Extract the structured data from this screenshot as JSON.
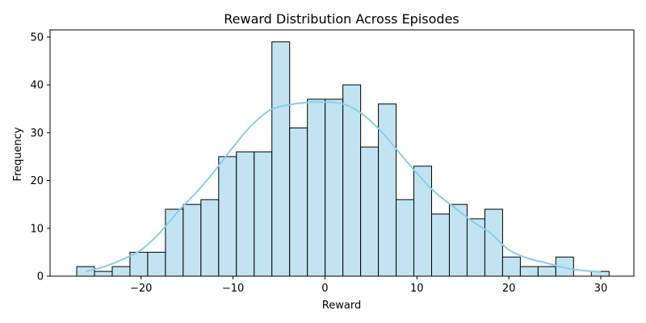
{
  "chart_data": {
    "type": "histogram",
    "title": "Reward Distribution Across Episodes",
    "xlabel": "Reward",
    "ylabel": "Frequency",
    "xlim": [
      -29.9,
      33.6
    ],
    "ylim": [
      0,
      51.5
    ],
    "xticks": [
      -20,
      -10,
      0,
      10,
      20,
      30
    ],
    "xtick_labels": [
      "−20",
      "−10",
      "0",
      "10",
      "20",
      "30"
    ],
    "yticks": [
      0,
      10,
      20,
      30,
      40,
      50
    ],
    "ytick_labels": [
      "0",
      "10",
      "20",
      "30",
      "40",
      "50"
    ],
    "bins": {
      "start": -27.0,
      "width": 1.93,
      "count": 30
    },
    "frequencies": [
      2,
      1,
      2,
      5,
      5,
      14,
      15,
      16,
      25,
      26,
      26,
      49,
      31,
      37,
      37,
      40,
      27,
      36,
      16,
      23,
      13,
      15,
      12,
      14,
      4,
      2,
      2,
      4,
      0,
      1
    ],
    "kde": {
      "x": [
        -26.0,
        -24.0,
        -22.0,
        -20.0,
        -18.0,
        -16.0,
        -14.0,
        -12.0,
        -10.0,
        -8.0,
        -6.0,
        -4.0,
        -2.0,
        0.0,
        2.0,
        4.0,
        6.0,
        8.0,
        10.0,
        12.0,
        14.0,
        16.0,
        18.0,
        20.0,
        22.0,
        24.0,
        26.0,
        28.0,
        30.0
      ],
      "y": [
        1.0,
        2.0,
        3.5,
        5.5,
        9.0,
        13.5,
        17.5,
        22.0,
        27.0,
        31.5,
        34.7,
        35.8,
        36.3,
        36.4,
        36.0,
        34.0,
        30.5,
        26.0,
        21.5,
        17.5,
        14.5,
        11.5,
        9.0,
        5.5,
        3.8,
        2.8,
        1.8,
        1.2,
        0.9
      ]
    },
    "colors": {
      "bar_fill": "#c2e4f2",
      "bar_edge": "#000000",
      "kde_line": "#87ceeb"
    },
    "grid": false,
    "legend": "none"
  }
}
